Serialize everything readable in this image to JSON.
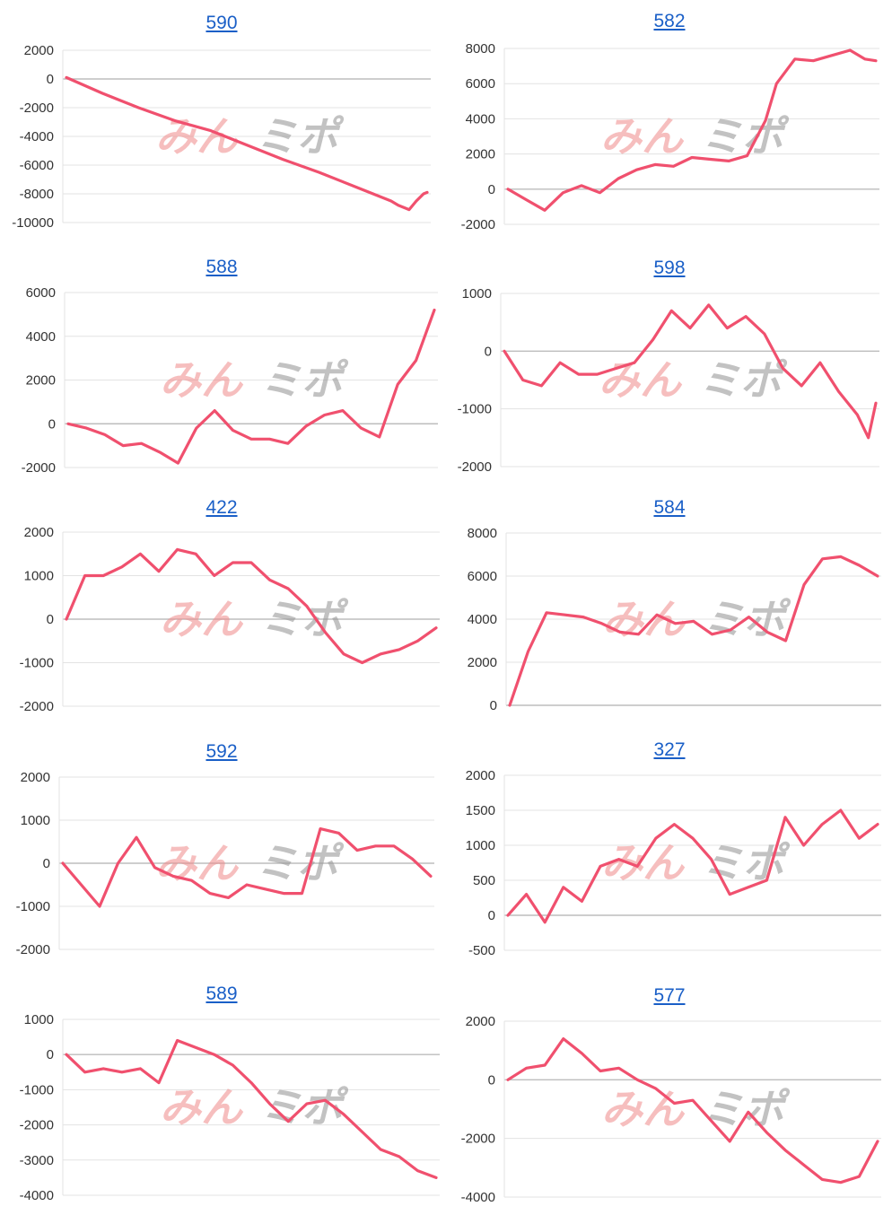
{
  "watermark": {
    "left": "みん",
    "right": "ミポ"
  },
  "colors": {
    "line": "#f0506e",
    "grid": "#e3e3e3",
    "zero": "#bdbdbd",
    "title": "#1a5fc7"
  },
  "chart_data": [
    {
      "type": "line",
      "title": "590",
      "yticks": [
        2000,
        0,
        -2000,
        -4000,
        -6000,
        -8000,
        -10000
      ],
      "ylim": [
        -10000,
        2000
      ],
      "x": [
        0,
        0.1,
        0.2,
        0.3,
        0.4,
        0.5,
        0.6,
        0.7,
        0.8,
        0.9,
        0.92,
        0.94,
        0.95,
        0.97,
        0.99,
        1.0
      ],
      "values": [
        100,
        -1000,
        -2000,
        -2900,
        -3600,
        -4600,
        -5600,
        -6500,
        -7500,
        -8500,
        -8800,
        -9000,
        -9100,
        -8500,
        -8000,
        -7900
      ]
    },
    {
      "type": "line",
      "title": "582",
      "yticks": [
        8000,
        6000,
        4000,
        2000,
        0,
        -2000
      ],
      "ylim": [
        -2000,
        8000
      ],
      "x": [
        0,
        0.05,
        0.1,
        0.15,
        0.2,
        0.25,
        0.3,
        0.35,
        0.4,
        0.45,
        0.5,
        0.55,
        0.6,
        0.65,
        0.7,
        0.73,
        0.78,
        0.83,
        0.88,
        0.93,
        0.97,
        1.0
      ],
      "values": [
        0,
        -600,
        -1200,
        -200,
        200,
        -200,
        600,
        1100,
        1400,
        1300,
        1800,
        1700,
        1600,
        1900,
        3900,
        6000,
        7400,
        7300,
        7600,
        7900,
        7400,
        7300
      ]
    },
    {
      "type": "line",
      "title": "588",
      "yticks": [
        6000,
        4000,
        2000,
        0,
        -2000
      ],
      "ylim": [
        -2000,
        6000
      ],
      "x": [
        0,
        0.05,
        0.1,
        0.15,
        0.2,
        0.25,
        0.3,
        0.35,
        0.4,
        0.45,
        0.5,
        0.55,
        0.6,
        0.65,
        0.7,
        0.75,
        0.8,
        0.85,
        0.9,
        0.95,
        1.0
      ],
      "values": [
        0,
        -200,
        -500,
        -1000,
        -900,
        -1300,
        -1800,
        -200,
        600,
        -300,
        -700,
        -700,
        -900,
        -100,
        400,
        600,
        -200,
        -600,
        1800,
        2900,
        5200
      ]
    },
    {
      "type": "line",
      "title": "598",
      "yticks": [
        1000,
        0,
        -1000,
        -2000
      ],
      "ylim": [
        -2000,
        1000
      ],
      "x": [
        0,
        0.05,
        0.1,
        0.15,
        0.2,
        0.25,
        0.3,
        0.35,
        0.4,
        0.45,
        0.5,
        0.55,
        0.6,
        0.65,
        0.7,
        0.75,
        0.8,
        0.85,
        0.9,
        0.95,
        0.98,
        1.0
      ],
      "values": [
        0,
        -500,
        -600,
        -200,
        -400,
        -400,
        -300,
        -200,
        200,
        700,
        400,
        800,
        400,
        600,
        300,
        -300,
        -600,
        -200,
        -700,
        -1100,
        -1500,
        -900
      ]
    },
    {
      "type": "line",
      "title": "422",
      "yticks": [
        2000,
        1000,
        0,
        -1000,
        -2000
      ],
      "ylim": [
        -2000,
        2000
      ],
      "x": [
        0,
        0.05,
        0.1,
        0.15,
        0.2,
        0.25,
        0.3,
        0.35,
        0.4,
        0.45,
        0.5,
        0.55,
        0.6,
        0.65,
        0.7,
        0.75,
        0.8,
        0.85,
        0.9,
        0.95,
        1.0
      ],
      "values": [
        0,
        1000,
        1000,
        1200,
        1500,
        1100,
        1600,
        1500,
        1000,
        1300,
        1300,
        900,
        700,
        300,
        -300,
        -800,
        -1000,
        -800,
        -700,
        -500,
        -200
      ]
    },
    {
      "type": "line",
      "title": "584",
      "yticks": [
        8000,
        6000,
        4000,
        2000,
        0
      ],
      "ylim": [
        0,
        8000
      ],
      "x": [
        0,
        0.05,
        0.1,
        0.15,
        0.2,
        0.25,
        0.3,
        0.35,
        0.4,
        0.45,
        0.5,
        0.55,
        0.6,
        0.65,
        0.7,
        0.75,
        0.8,
        0.85,
        0.9,
        0.95,
        1.0
      ],
      "values": [
        0,
        2500,
        4300,
        4200,
        4100,
        3800,
        3400,
        3300,
        4200,
        3800,
        3900,
        3300,
        3500,
        4100,
        3400,
        3000,
        5600,
        6800,
        6900,
        6500,
        6000
      ]
    },
    {
      "type": "line",
      "title": "592",
      "yticks": [
        2000,
        1000,
        0,
        -1000,
        -2000
      ],
      "ylim": [
        -2000,
        2000
      ],
      "x": [
        0,
        0.05,
        0.1,
        0.15,
        0.2,
        0.25,
        0.3,
        0.35,
        0.4,
        0.45,
        0.5,
        0.55,
        0.6,
        0.65,
        0.7,
        0.75,
        0.8,
        0.85,
        0.9,
        0.95,
        1.0
      ],
      "values": [
        0,
        -500,
        -1000,
        0,
        600,
        -100,
        -300,
        -400,
        -700,
        -800,
        -500,
        -600,
        -700,
        -700,
        800,
        700,
        300,
        400,
        400,
        100,
        -300
      ]
    },
    {
      "type": "line",
      "title": "327",
      "yticks": [
        2000,
        1500,
        1000,
        500,
        0,
        -500
      ],
      "ylim": [
        -500,
        2000
      ],
      "x": [
        0,
        0.05,
        0.1,
        0.15,
        0.2,
        0.25,
        0.3,
        0.35,
        0.4,
        0.45,
        0.5,
        0.55,
        0.6,
        0.65,
        0.7,
        0.75,
        0.8,
        0.85,
        0.9,
        0.95,
        1.0
      ],
      "values": [
        0,
        300,
        -100,
        400,
        200,
        700,
        800,
        700,
        1100,
        1300,
        1100,
        800,
        300,
        400,
        500,
        1400,
        1000,
        1300,
        1500,
        1100,
        1300
      ]
    },
    {
      "type": "line",
      "title": "589",
      "yticks": [
        1000,
        0,
        -1000,
        -2000,
        -3000,
        -4000
      ],
      "ylim": [
        -4000,
        1000
      ],
      "x": [
        0,
        0.05,
        0.1,
        0.15,
        0.2,
        0.25,
        0.3,
        0.35,
        0.4,
        0.45,
        0.5,
        0.55,
        0.6,
        0.65,
        0.7,
        0.75,
        0.8,
        0.85,
        0.9,
        0.95,
        1.0
      ],
      "values": [
        0,
        -500,
        -400,
        -500,
        -400,
        -800,
        400,
        200,
        0,
        -300,
        -800,
        -1400,
        -1900,
        -1400,
        -1300,
        -1700,
        -2200,
        -2700,
        -2900,
        -3300,
        -3500
      ]
    },
    {
      "type": "line",
      "title": "577",
      "yticks": [
        2000,
        0,
        -2000,
        -4000
      ],
      "ylim": [
        -4000,
        2000
      ],
      "x": [
        0,
        0.05,
        0.1,
        0.15,
        0.2,
        0.25,
        0.3,
        0.35,
        0.4,
        0.45,
        0.5,
        0.55,
        0.6,
        0.65,
        0.7,
        0.75,
        0.8,
        0.85,
        0.9,
        0.95,
        1.0
      ],
      "values": [
        0,
        400,
        500,
        1400,
        900,
        300,
        400,
        0,
        -300,
        -800,
        -700,
        -1400,
        -2100,
        -1100,
        -1800,
        -2400,
        -2900,
        -3400,
        -3500,
        -3300,
        -2100
      ]
    }
  ]
}
